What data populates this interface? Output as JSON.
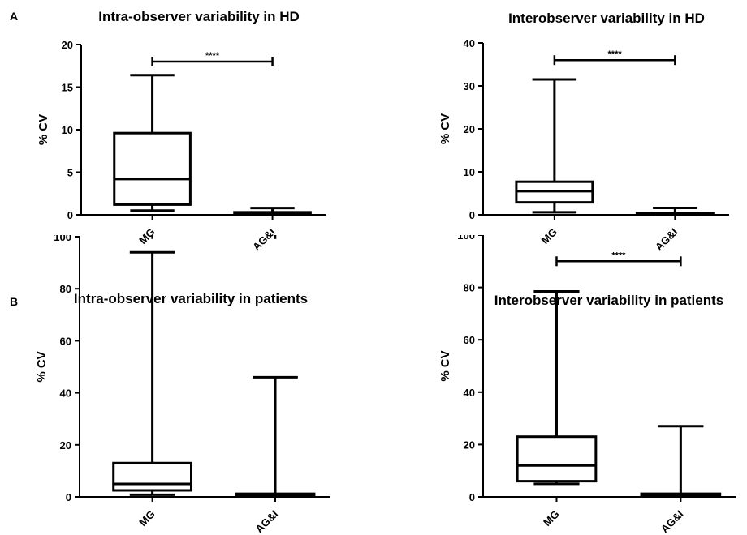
{
  "panel_labels": [
    "A",
    "B"
  ],
  "chart_data": [
    {
      "type": "box",
      "title": "Intra-observer variability in HD",
      "ylabel": "% CV",
      "categories": [
        "MG",
        "AG&I"
      ],
      "ylim": [
        0,
        20
      ],
      "yticks": [
        0,
        5,
        10,
        15,
        20
      ],
      "boxes": [
        {
          "min": 0.5,
          "q1": 1.2,
          "median": 4.2,
          "q3": 9.6,
          "max": 16.4
        },
        {
          "min": 0.05,
          "q1": 0.1,
          "median": 0.2,
          "q3": 0.3,
          "max": 0.8
        }
      ],
      "significance": {
        "from": 0,
        "to": 1,
        "label": "****",
        "y": 18
      }
    },
    {
      "type": "box",
      "title": "Interobserver variability in HD",
      "ylabel": "% CV",
      "categories": [
        "MG",
        "AG&I"
      ],
      "ylim": [
        0,
        40
      ],
      "yticks": [
        0,
        10,
        20,
        30,
        40
      ],
      "boxes": [
        {
          "min": 0.6,
          "q1": 2.9,
          "median": 5.5,
          "q3": 7.7,
          "max": 31.5
        },
        {
          "min": 0.05,
          "q1": 0.1,
          "median": 0.2,
          "q3": 0.4,
          "max": 1.6
        }
      ],
      "significance": {
        "from": 0,
        "to": 1,
        "label": "****",
        "y": 36
      }
    },
    {
      "type": "box",
      "title": "Intra-observer variability in patients",
      "ylabel": "% CV",
      "categories": [
        "MG",
        "AG&I"
      ],
      "ylim": [
        0,
        100
      ],
      "yticks": [
        0,
        20,
        40,
        60,
        80,
        100
      ],
      "boxes": [
        {
          "min": 0.8,
          "q1": 2.5,
          "median": 5,
          "q3": 13,
          "max": 94
        },
        {
          "min": 0.2,
          "q1": 0.4,
          "median": 0.8,
          "q3": 1.2,
          "max": 46
        }
      ],
      "significance": {
        "from": 0,
        "to": 1,
        "label": "****",
        "y": 101
      }
    },
    {
      "type": "box",
      "title": "Interobserver variability in patients",
      "ylabel": "% CV",
      "categories": [
        "MG",
        "AG&I"
      ],
      "ylim": [
        0,
        100
      ],
      "yticks": [
        0,
        20,
        40,
        60,
        80,
        100
      ],
      "boxes": [
        {
          "min": 5,
          "q1": 6,
          "median": 12,
          "q3": 23,
          "max": 78.5
        },
        {
          "min": 0.2,
          "q1": 0.4,
          "median": 0.8,
          "q3": 1.2,
          "max": 27
        }
      ],
      "significance": {
        "from": 0,
        "to": 1,
        "label": "****",
        "y": 90
      }
    }
  ]
}
